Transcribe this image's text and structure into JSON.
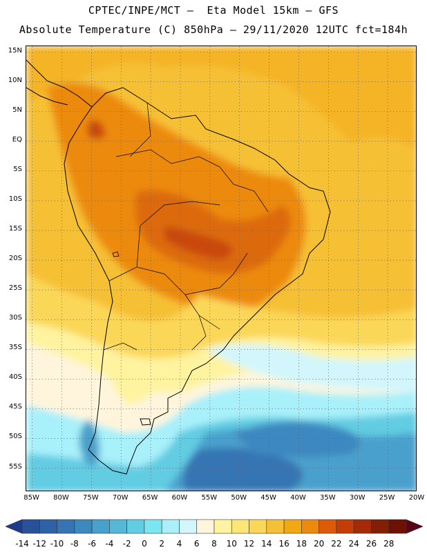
{
  "header": {
    "line1": "CPTEC/INPE/MCT –  Eta Model 15km – GFS",
    "line2": "Absolute Temperature (C) 850hPa – 29/11/2020 12UTC fct=184h"
  },
  "map": {
    "lon_range": [
      -86,
      -20
    ],
    "lat_range": [
      -59,
      16
    ],
    "lat_ticks": [
      "15N",
      "10N",
      "5N",
      "EQ",
      "5S",
      "10S",
      "15S",
      "20S",
      "25S",
      "30S",
      "35S",
      "40S",
      "45S",
      "50S",
      "55S"
    ],
    "lon_ticks": [
      "85W",
      "80W",
      "75W",
      "70W",
      "65W",
      "60W",
      "55W",
      "50W",
      "45W",
      "40W",
      "35W",
      "30W",
      "25W",
      "20W"
    ],
    "gridlines": true
  },
  "colorbar": {
    "labels": [
      "-14",
      "-12",
      "-10",
      "-8",
      "-6",
      "-4",
      "-2",
      "0",
      "2",
      "4",
      "6",
      "8",
      "10",
      "12",
      "14",
      "16",
      "18",
      "20",
      "22",
      "24",
      "26",
      "28"
    ],
    "colors": [
      "#1e3c8c",
      "#28509b",
      "#2e62a8",
      "#3674b3",
      "#3c88c0",
      "#48a0cc",
      "#55b8d8",
      "#62cce2",
      "#7ae6f0",
      "#a8f0fa",
      "#d2f6fc",
      "#fff5dc",
      "#fff3a0",
      "#fde678",
      "#fbd758",
      "#f6c036",
      "#f2a812",
      "#ec8a10",
      "#dc5a0a",
      "#c43c08",
      "#a42a08",
      "#841e06",
      "#6e1004",
      "#5a0418"
    ]
  }
}
